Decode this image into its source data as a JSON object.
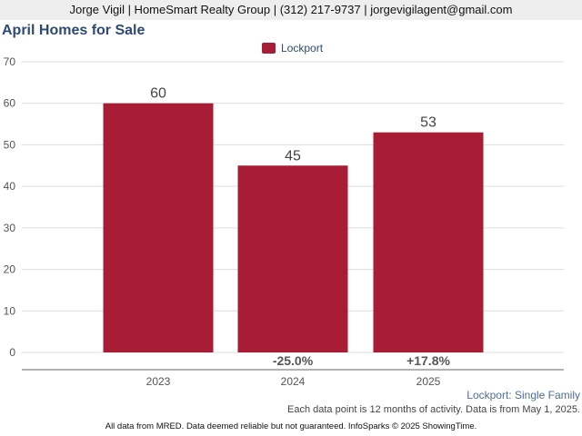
{
  "header": {
    "contact": "Jorge Vigil | HomeSmart Realty Group | (312) 217-9737 | jorgevigilagent@gmail.com"
  },
  "chart_data": {
    "type": "bar",
    "title": "April Homes for Sale",
    "categories": [
      "2023",
      "2024",
      "2025"
    ],
    "series": [
      {
        "name": "Lockport",
        "values": [
          60,
          45,
          53
        ],
        "color": "#a91c35"
      }
    ],
    "data_labels": [
      "60",
      "45",
      "53"
    ],
    "change_labels": [
      "",
      "-25.0%",
      "+17.8%"
    ],
    "ylim": [
      0,
      70
    ],
    "yticks": [
      0,
      10,
      20,
      30,
      40,
      50,
      60,
      70
    ],
    "grid": true,
    "legend_position": "top-center",
    "xlabel": "",
    "ylabel": ""
  },
  "subtitle": "Lockport: Single Family",
  "note": "Each data point is 12 months of activity. Data is from May 1, 2025.",
  "footer": "All data from MRED. Data deemed reliable but not guaranteed. InfoSparks © 2025 ShowingTime."
}
